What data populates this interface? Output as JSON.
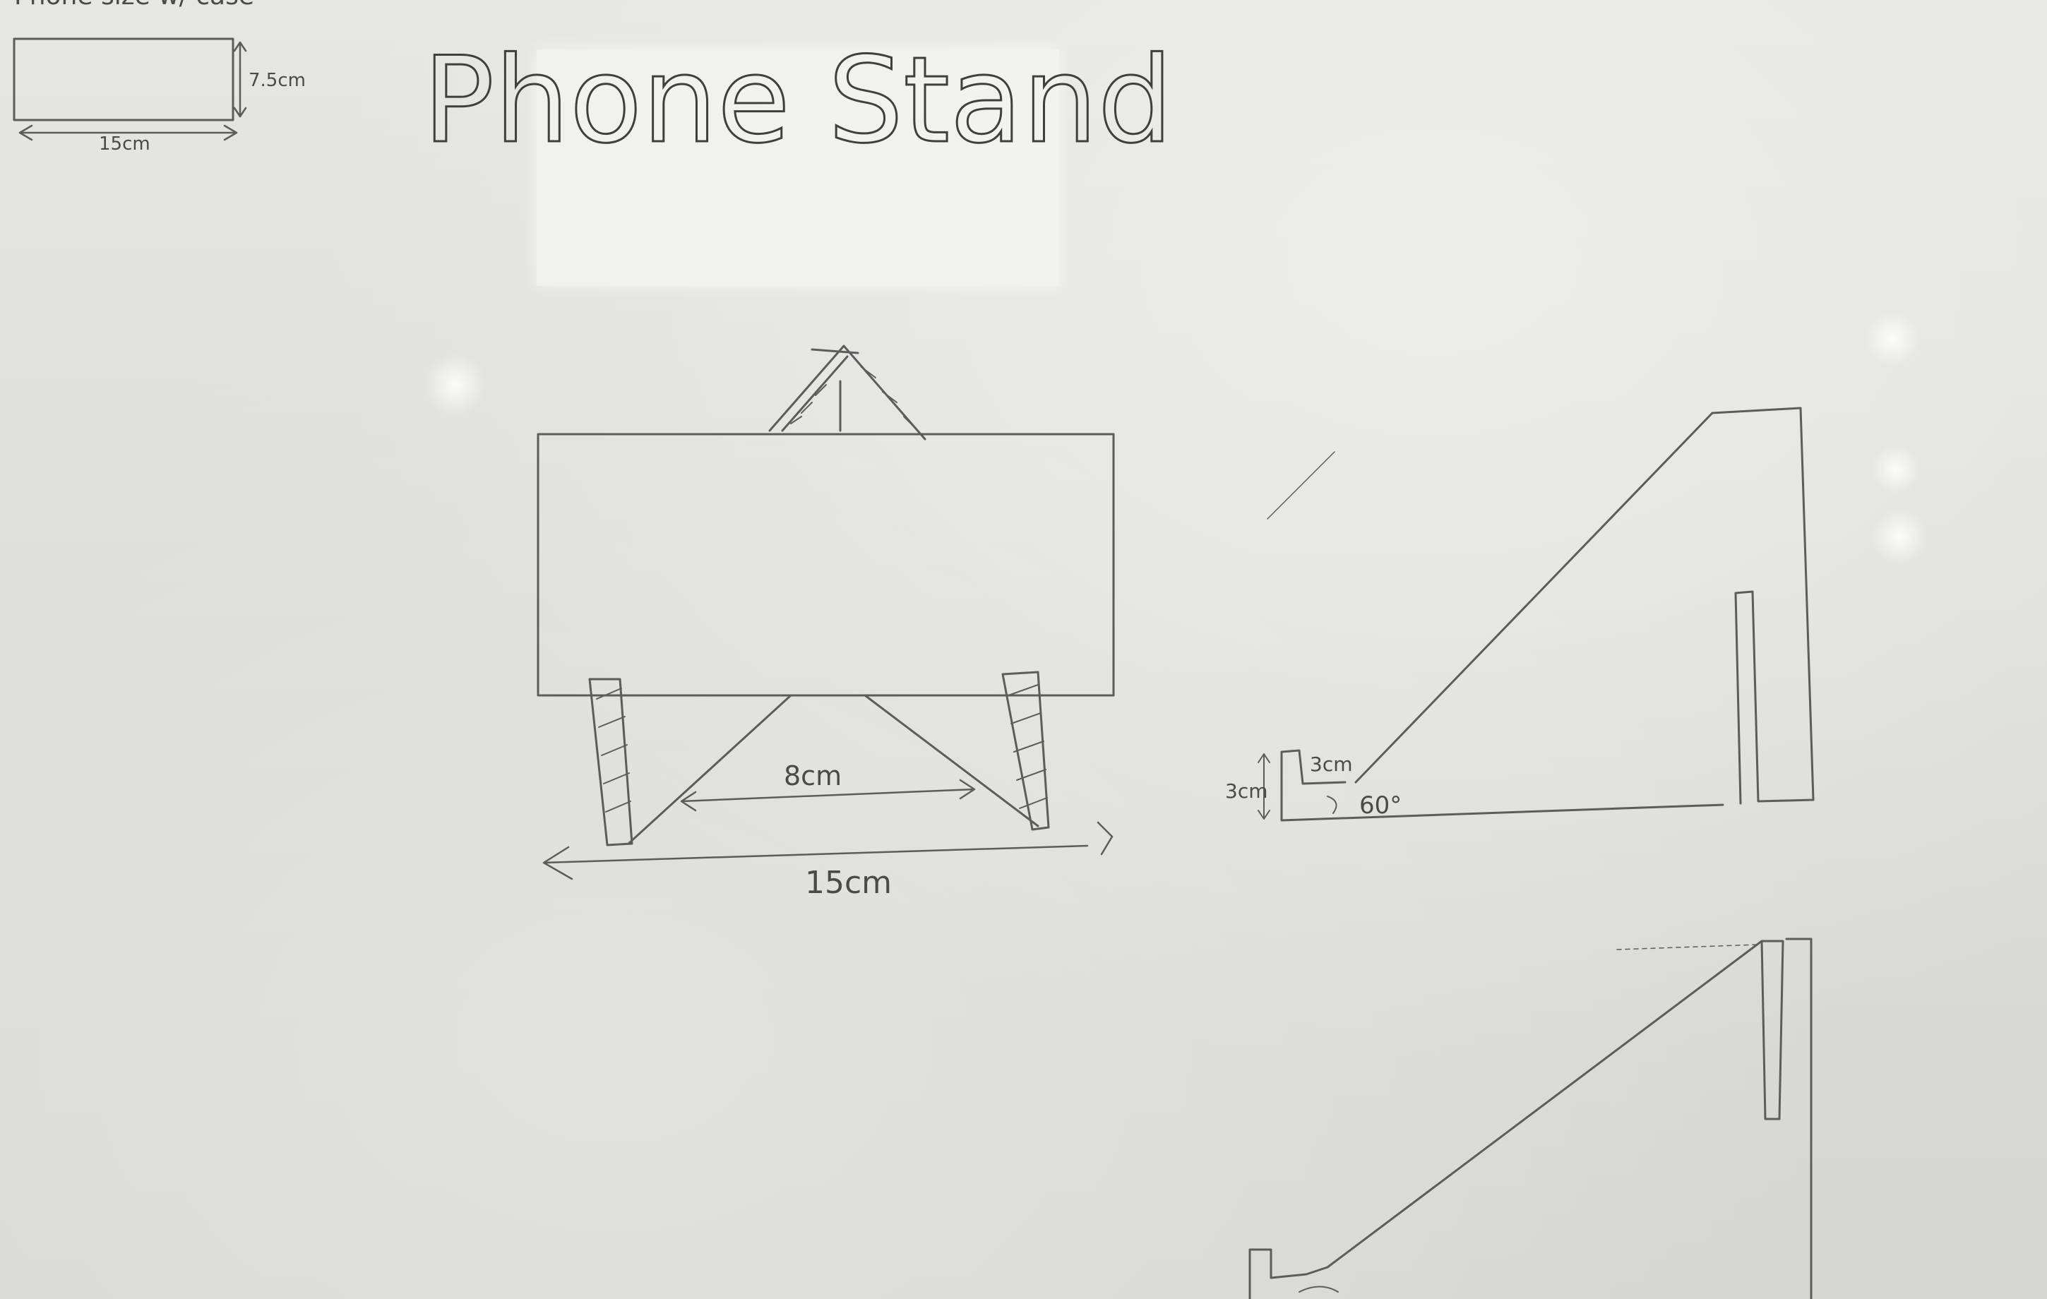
{
  "title": "Phone Stand",
  "corner_note": {
    "heading": "Phone size w/ case",
    "height_label": "7.5cm",
    "width_label": "15cm"
  },
  "front_view": {
    "inner_label": "8cm",
    "width_label": "15cm"
  },
  "side_view": {
    "lip_height_label": "3cm",
    "lip_width_label": "3cm",
    "angle_label": "60°"
  },
  "colors": {
    "paper": "#e4e4e1",
    "pencil": "#5c5c5c"
  }
}
